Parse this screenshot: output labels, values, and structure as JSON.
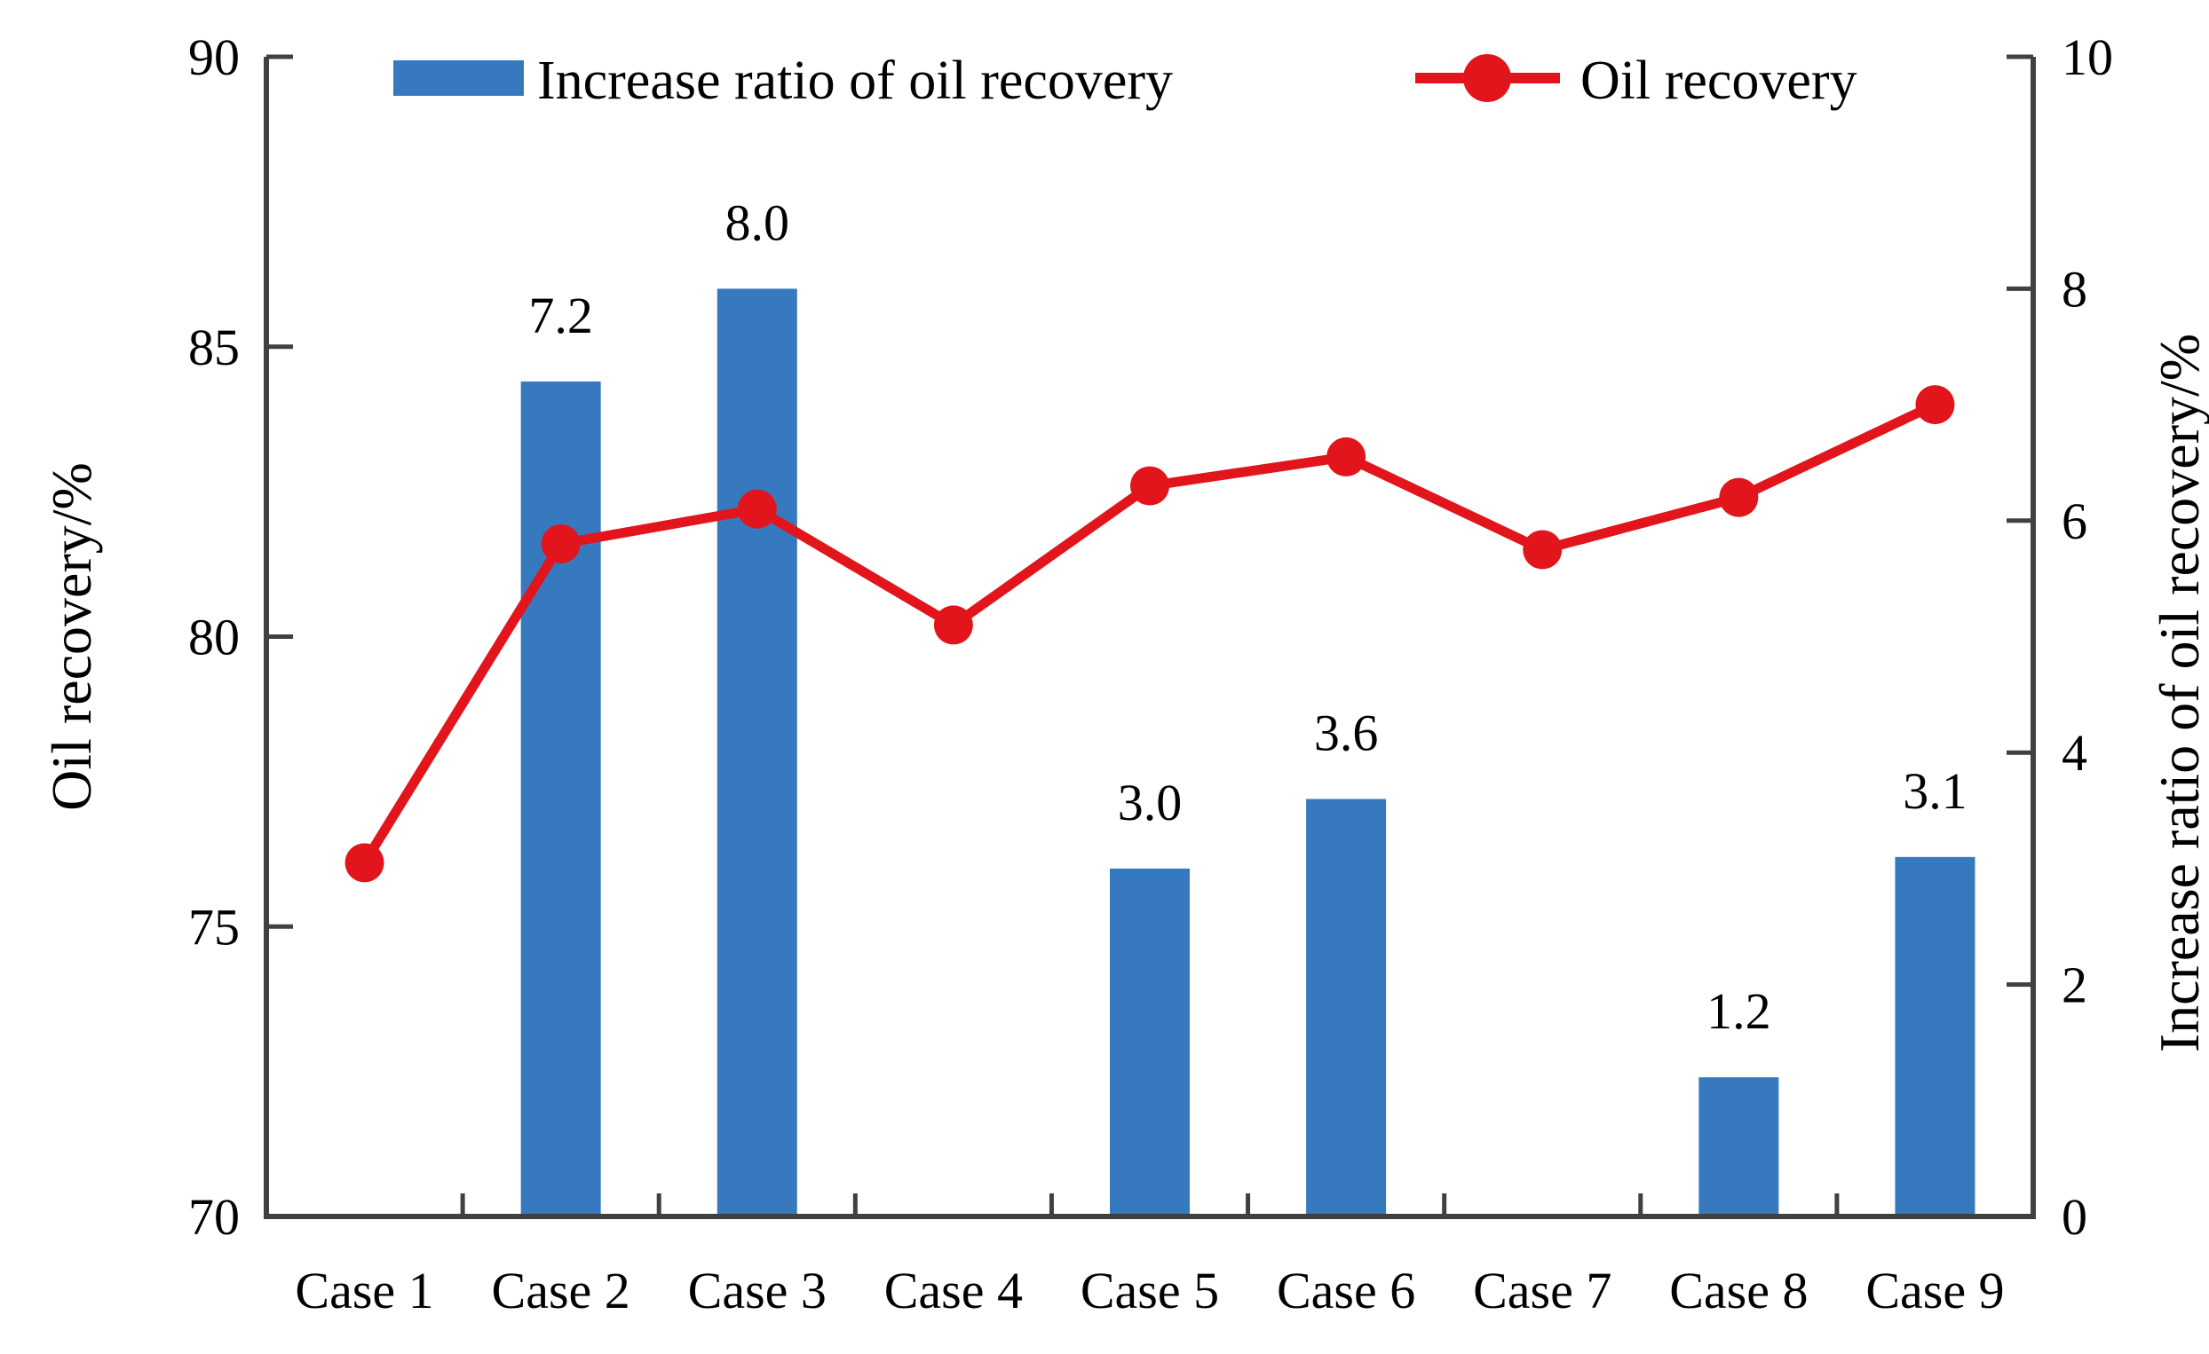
{
  "figure": {
    "background": "#ffffff",
    "axis_color": "#404040",
    "text_color": "#000000"
  },
  "chart_data": {
    "type": "combo",
    "categories": [
      "Case 1",
      "Case 2",
      "Case 3",
      "Case 4",
      "Case 5",
      "Case 6",
      "Case 7",
      "Case 8",
      "Case 9"
    ],
    "series": [
      {
        "name": "Increase ratio of oil recovery",
        "type": "bar",
        "axis": "right",
        "color": "#3779BE",
        "values": [
          null,
          7.2,
          8.0,
          null,
          3.0,
          3.6,
          null,
          1.2,
          3.1
        ],
        "data_labels": [
          "",
          "7.2",
          "8.0",
          "",
          "3.0",
          "3.6",
          "",
          "1.2",
          "3.1"
        ]
      },
      {
        "name": "Oil recovery",
        "type": "line",
        "axis": "left",
        "color": "#E2151C",
        "values": [
          76.1,
          81.6,
          82.2,
          80.2,
          82.6,
          83.1,
          81.5,
          82.4,
          84.0
        ]
      }
    ],
    "left_axis": {
      "label": "Oil recovery/%",
      "min": 70,
      "max": 90,
      "ticks": [
        "70",
        "75",
        "80",
        "85",
        "90"
      ],
      "tick_values": [
        70,
        75,
        80,
        85,
        90
      ]
    },
    "right_axis": {
      "label": "Increase ratio of oil recovery/%",
      "min": 0,
      "max": 10,
      "ticks": [
        "0",
        "2",
        "4",
        "6",
        "8",
        "10"
      ],
      "tick_values": [
        0,
        2,
        4,
        6,
        8,
        10
      ]
    },
    "legend": {
      "position": "top",
      "entries": [
        {
          "label": "Increase ratio of oil recovery",
          "marker": "bar-swatch",
          "color": "#3779BE"
        },
        {
          "label": "Oil recovery",
          "marker": "line-dot",
          "color": "#E2151C"
        }
      ]
    },
    "grid": false,
    "title": ""
  }
}
